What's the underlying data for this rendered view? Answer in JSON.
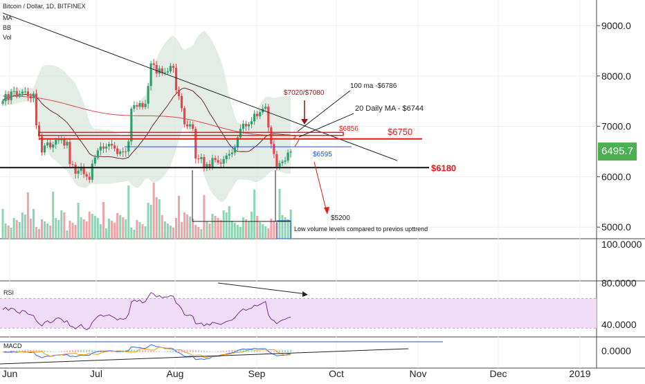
{
  "header": {
    "symbol": "Bitcoin / Dollar, 1D, BITFINEX",
    "indicators": [
      "MA",
      "BB",
      "Vol"
    ]
  },
  "last_price": {
    "label": "6495.7",
    "color": "#4caf50"
  },
  "colors": {
    "up": "#2ea06a",
    "down": "#e0484d",
    "ma_red": "#e0484d",
    "ma_dark": "#6b2a2a",
    "bb_fill": "#d9e6dc",
    "rsi_fill": "#efdcf7",
    "rsi_line": "#7b2c94",
    "annotation_red": "#e31b1b",
    "annotation_blue": "#2255cc"
  },
  "chart_data": [
    {
      "type": "candlestick",
      "panel": "price",
      "y_ticks": [
        "9000.0",
        "8000.0",
        "7000.0",
        "6000.0",
        "5000.0"
      ],
      "ylim": [
        4700,
        9700
      ],
      "x_ticks": [
        "Jun",
        "Jul",
        "Aug",
        "Sep",
        "Oct",
        "Nov",
        "Dec",
        "2019"
      ],
      "close": [
        7500,
        7640,
        7520,
        7690,
        7700,
        7620,
        7650,
        7690,
        7690,
        7600,
        7560,
        7650,
        7020,
        6800,
        6480,
        6620,
        6680,
        6580,
        6640,
        6730,
        6730,
        6740,
        6620,
        6690,
        6250,
        6240,
        6060,
        6120,
        6200,
        6050,
        6000,
        5940,
        6260,
        6380,
        6520,
        6600,
        6560,
        6600,
        6650,
        6620,
        6560,
        6450,
        6500,
        6490,
        6500,
        6700,
        7350,
        7420,
        7390,
        7460,
        7380,
        7450,
        7800,
        8250,
        8220,
        8050,
        8150,
        8060,
        8070,
        8090,
        8200,
        8160,
        7720,
        7600,
        7360,
        7040,
        7000,
        7040,
        6950,
        6360,
        6350,
        6390,
        6180,
        6250,
        6190,
        6370,
        6330,
        6280,
        6260,
        6350,
        6420,
        6450,
        6480,
        6580,
        6780,
        6950,
        7050,
        7000,
        7040,
        7100,
        7250,
        7200,
        7280,
        7350,
        7390,
        6980,
        6650,
        6450,
        6200,
        6270,
        6300,
        6320,
        6480,
        6500
      ],
      "series": [
        {
          "name": "MA",
          "kind": "ma_short"
        },
        {
          "name": "MA",
          "kind": "ma_long"
        },
        {
          "name": "BB",
          "kind": "bollinger"
        },
        {
          "name": "Vol",
          "kind": "volume"
        }
      ],
      "annotations": [
        {
          "text": "$7020/$7080",
          "kind": "label"
        },
        {
          "text": "100 ma -$6786",
          "kind": "label"
        },
        {
          "text": "20 Daily MA - $6744",
          "kind": "label"
        },
        {
          "text": "$6856",
          "kind": "level",
          "value": 6856
        },
        {
          "text": "$6750",
          "kind": "level",
          "value": 6750
        },
        {
          "text": "$6595",
          "kind": "level",
          "value": 6595
        },
        {
          "text": "$6180",
          "kind": "level",
          "value": 6180
        },
        {
          "text": "$5200",
          "kind": "target",
          "value": 5200
        },
        {
          "text": "Low volume levels compared to previos upttrend",
          "kind": "note"
        }
      ]
    },
    {
      "type": "line",
      "panel": "empty",
      "y_ticks": [
        "100.0000"
      ]
    },
    {
      "type": "line",
      "panel": "rsi",
      "title": "RSI",
      "y_ticks": [
        "80.0000",
        "40.0000"
      ],
      "ylim": [
        20,
        90
      ],
      "band": [
        30,
        70
      ],
      "values": [
        55,
        58,
        54,
        57,
        56,
        52,
        50,
        54,
        53,
        49,
        48,
        47,
        40,
        36,
        33,
        38,
        40,
        37,
        39,
        43,
        44,
        42,
        38,
        40,
        33,
        32,
        29,
        32,
        35,
        30,
        28,
        30,
        38,
        42,
        46,
        48,
        46,
        47,
        48,
        46,
        44,
        41,
        43,
        42,
        43,
        49,
        65,
        68,
        66,
        68,
        64,
        66,
        72,
        78,
        76,
        72,
        74,
        71,
        72,
        72,
        74,
        73,
        64,
        61,
        56,
        48,
        47,
        48,
        46,
        36,
        36,
        37,
        33,
        36,
        34,
        38,
        37,
        36,
        35,
        37,
        39,
        40,
        41,
        44,
        49,
        53,
        56,
        54,
        56,
        57,
        61,
        60,
        62,
        64,
        66,
        48,
        42,
        40,
        36,
        39,
        41,
        42,
        44,
        45
      ]
    },
    {
      "type": "line",
      "panel": "macd",
      "title": "MACD",
      "y_ticks": [
        "0.0000"
      ]
    }
  ]
}
